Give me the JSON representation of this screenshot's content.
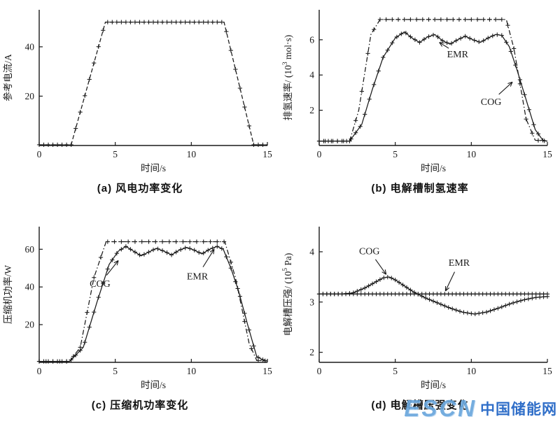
{
  "style": {
    "ink": "#1a1a1a",
    "background": "#ffffff"
  },
  "watermark": {
    "escn": "ESCN",
    "cn": "中国储能网",
    "color_escn": "#6aa7dd",
    "color_cn": "#1e62c4"
  },
  "chart_data": [
    {
      "id": "a",
      "type": "line",
      "caption": "(a) 风电功率变化",
      "xlabel": "时间/s",
      "ylabel": "参考电流/A",
      "ylabel_parts": [
        {
          "t": "参考电流/A"
        }
      ],
      "xlim": [
        0,
        15
      ],
      "ylim": [
        0,
        55
      ],
      "xticks": [
        0,
        5,
        10,
        15
      ],
      "yticks": [
        20,
        40
      ],
      "grid": false,
      "series": [
        {
          "name": "参考电流",
          "style": "dash",
          "marker": "plus",
          "marker_step": 0.3,
          "points": [
            [
              0,
              0.3
            ],
            [
              2.1,
              0.3
            ],
            [
              4.35,
              50
            ],
            [
              12.15,
              50
            ],
            [
              14.1,
              0.3
            ],
            [
              15,
              0.3
            ]
          ]
        }
      ],
      "annotations": []
    },
    {
      "id": "b",
      "type": "line",
      "caption": "(b) 电解槽制氢速率",
      "xlabel": "时间/s",
      "ylabel": "排氢速率/ (10³ mol·s)",
      "ylabel_parts": [
        {
          "t": "排氢速率/ (10"
        },
        {
          "t": "3",
          "sup": true
        },
        {
          "t": " mol·s)"
        }
      ],
      "xlim": [
        0,
        15
      ],
      "ylim": [
        0,
        7.7
      ],
      "xticks": [
        0,
        5,
        10,
        15
      ],
      "yticks": [
        2,
        4,
        6
      ],
      "grid": false,
      "series": [
        {
          "name": "EMR",
          "style": "dashdot",
          "marker": "plus",
          "marker_step": 0.4,
          "points": [
            [
              0,
              0.25
            ],
            [
              2.0,
              0.25
            ],
            [
              2.6,
              2
            ],
            [
              3.4,
              6.3
            ],
            [
              4.0,
              7.15
            ],
            [
              12.3,
              7.15
            ],
            [
              12.8,
              5.5
            ],
            [
              13.6,
              1.5
            ],
            [
              14.2,
              0.3
            ],
            [
              15,
              0.25
            ]
          ]
        },
        {
          "name": "COG",
          "style": "solid",
          "marker": "plus",
          "marker_step": 0.3,
          "points": [
            [
              0,
              0.25
            ],
            [
              2.0,
              0.25
            ],
            [
              2.8,
              1.2
            ],
            [
              3.5,
              3.2
            ],
            [
              4.2,
              5.0
            ],
            [
              5.0,
              6.1
            ],
            [
              5.6,
              6.45
            ],
            [
              6.1,
              6.1
            ],
            [
              6.6,
              5.85
            ],
            [
              7.1,
              6.15
            ],
            [
              7.6,
              6.3
            ],
            [
              8.1,
              5.95
            ],
            [
              8.6,
              5.75
            ],
            [
              9.1,
              6.0
            ],
            [
              9.6,
              6.2
            ],
            [
              10.1,
              6.0
            ],
            [
              10.6,
              5.85
            ],
            [
              11.1,
              6.1
            ],
            [
              11.6,
              6.3
            ],
            [
              12.0,
              6.25
            ],
            [
              12.5,
              5.6
            ],
            [
              13.0,
              4.3
            ],
            [
              13.6,
              2.6
            ],
            [
              14.2,
              0.9
            ],
            [
              14.7,
              0.3
            ],
            [
              15,
              0.25
            ]
          ]
        }
      ],
      "annotations": [
        {
          "text": "EMR",
          "tx": 9.1,
          "ty": 5.0,
          "ax": 7.9,
          "ay": 5.85
        },
        {
          "text": "COG",
          "tx": 11.3,
          "ty": 2.3,
          "ax": 12.7,
          "ay": 3.6
        }
      ]
    },
    {
      "id": "c",
      "type": "line",
      "caption": "(c) 压缩机功率变化",
      "xlabel": "时间/s",
      "ylabel": "压缩机功率/W",
      "ylabel_parts": [
        {
          "t": "压缩机功率/W"
        }
      ],
      "xlim": [
        0,
        15
      ],
      "ylim": [
        0,
        72
      ],
      "xticks": [
        0,
        5,
        10,
        15
      ],
      "yticks": [
        20,
        40,
        60
      ],
      "grid": false,
      "series": [
        {
          "name": "EMR",
          "style": "dashdot",
          "marker": "plus",
          "marker_step": 0.45,
          "points": [
            [
              0,
              0.5
            ],
            [
              2.0,
              0.5
            ],
            [
              2.7,
              8
            ],
            [
              3.6,
              45
            ],
            [
              4.4,
              64
            ],
            [
              12.2,
              64
            ],
            [
              12.9,
              45
            ],
            [
              13.8,
              10
            ],
            [
              14.3,
              1
            ],
            [
              15,
              0.8
            ]
          ]
        },
        {
          "name": "COG",
          "style": "solid",
          "marker": "plus",
          "marker_step": 0.3,
          "points": [
            [
              0,
              0.5
            ],
            [
              2.0,
              0.5
            ],
            [
              2.9,
              8
            ],
            [
              3.8,
              32
            ],
            [
              4.6,
              52
            ],
            [
              5.2,
              59
            ],
            [
              5.7,
              61.5
            ],
            [
              6.2,
              59
            ],
            [
              6.7,
              56.5
            ],
            [
              7.2,
              58.5
            ],
            [
              7.7,
              60.5
            ],
            [
              8.2,
              59
            ],
            [
              8.7,
              57
            ],
            [
              9.2,
              59.5
            ],
            [
              9.7,
              61
            ],
            [
              10.2,
              59.5
            ],
            [
              10.7,
              57.5
            ],
            [
              11.2,
              60
            ],
            [
              11.7,
              61.5
            ],
            [
              12.1,
              60
            ],
            [
              12.6,
              50
            ],
            [
              13.1,
              38
            ],
            [
              13.7,
              20
            ],
            [
              14.3,
              3
            ],
            [
              14.8,
              1
            ],
            [
              15,
              0.8
            ]
          ]
        }
      ],
      "annotations": [
        {
          "text": "COG",
          "tx": 4.0,
          "ty": 40,
          "ax": 5.2,
          "ay": 54
        },
        {
          "text": "EMR",
          "tx": 10.4,
          "ty": 44,
          "ax": 11.5,
          "ay": 60
        }
      ]
    },
    {
      "id": "d",
      "type": "line",
      "caption": "(d) 电解槽压强变化",
      "xlabel": "时间/s",
      "ylabel": "电解槽压强/ (10⁵ Pa)",
      "ylabel_parts": [
        {
          "t": "电解槽压强/ (10"
        },
        {
          "t": "5",
          "sup": true
        },
        {
          "t": " Pa)"
        }
      ],
      "xlim": [
        0,
        15
      ],
      "ylim": [
        1.8,
        4.5
      ],
      "xticks": [
        0,
        5,
        10,
        15
      ],
      "yticks": [
        2,
        3,
        4
      ],
      "grid": false,
      "series": [
        {
          "name": "EMR",
          "style": "solid",
          "marker": "plus",
          "marker_step": 0.25,
          "points": [
            [
              0,
              3.16
            ],
            [
              15,
              3.16
            ]
          ]
        },
        {
          "name": "COG",
          "style": "solid",
          "marker": "plus",
          "marker_step": 0.25,
          "points": [
            [
              0,
              3.16
            ],
            [
              1.5,
              3.16
            ],
            [
              2.2,
              3.18
            ],
            [
              3.0,
              3.28
            ],
            [
              3.6,
              3.38
            ],
            [
              4.2,
              3.48
            ],
            [
              4.6,
              3.5
            ],
            [
              5.0,
              3.44
            ],
            [
              5.6,
              3.32
            ],
            [
              6.2,
              3.2
            ],
            [
              7.0,
              3.08
            ],
            [
              7.8,
              2.98
            ],
            [
              8.6,
              2.88
            ],
            [
              9.4,
              2.8
            ],
            [
              10.2,
              2.76
            ],
            [
              11.0,
              2.8
            ],
            [
              11.8,
              2.88
            ],
            [
              12.6,
              2.97
            ],
            [
              13.4,
              3.04
            ],
            [
              14.2,
              3.09
            ],
            [
              15,
              3.11
            ]
          ]
        }
      ],
      "annotations": [
        {
          "text": "COG",
          "tx": 3.3,
          "ty": 3.95,
          "ax": 4.4,
          "ay": 3.55
        },
        {
          "text": "EMR",
          "tx": 9.2,
          "ty": 3.72,
          "ax": 8.3,
          "ay": 3.22
        }
      ]
    }
  ]
}
